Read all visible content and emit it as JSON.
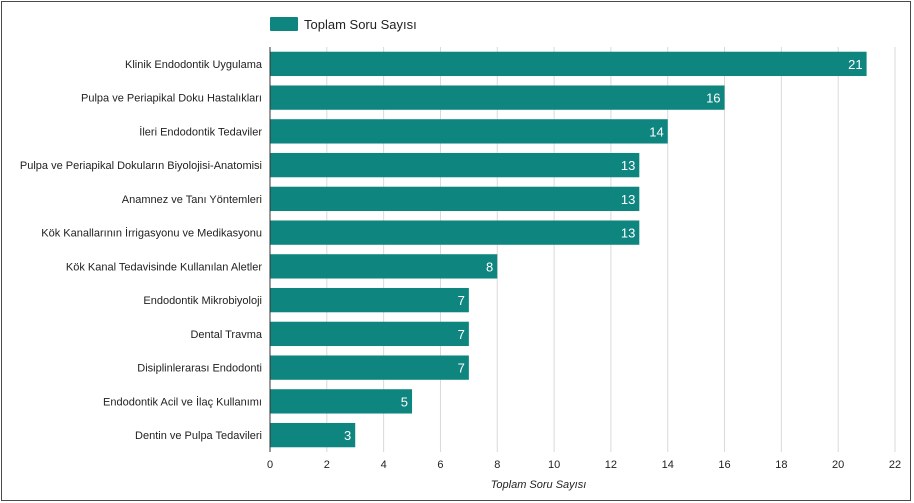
{
  "chart_data": {
    "type": "bar",
    "orientation": "horizontal",
    "categories": [
      "Klinik Endodontik Uygulama",
      "Pulpa ve Periapikal Doku Hastalıkları",
      "İleri Endodontik Tedaviler",
      "Pulpa ve Periapikal Dokuların Biyolojisi-Anatomisi",
      "Anamnez ve Tanı Yöntemleri",
      "Kök Kanallarının İrrigasyonu ve Medikasyonu",
      "Kök Kanal Tedavisinde Kullanılan Aletler",
      "Endodontik Mikrobiyoloji",
      "Dental Travma",
      "Disiplinlerarası Endodonti",
      "Endodontik Acil ve İlaç Kullanımı",
      "Dentin ve Pulpa Tedavileri"
    ],
    "series": [
      {
        "name": "Toplam Soru Sayısı",
        "color": "#0f8580",
        "values": [
          21,
          16,
          14,
          13,
          13,
          13,
          8,
          7,
          7,
          7,
          5,
          3
        ]
      }
    ],
    "xlabel": "Toplam Soru Sayısı",
    "xlim": [
      0,
      22
    ],
    "xticks": [
      0,
      2,
      4,
      6,
      8,
      10,
      12,
      14,
      16,
      18,
      20,
      22
    ],
    "grid": "vertical",
    "legend": "top-left",
    "data_labels": true
  }
}
